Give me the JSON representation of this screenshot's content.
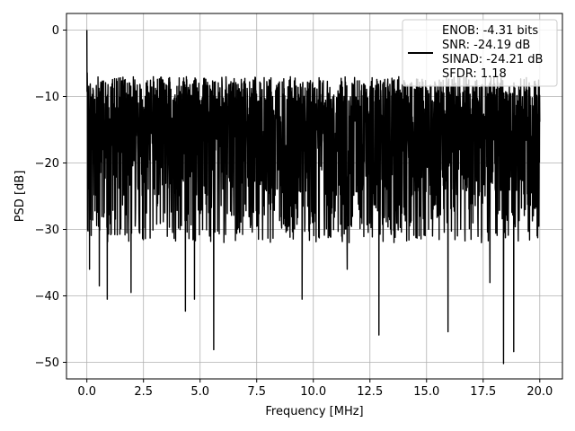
{
  "chart_data": {
    "type": "line",
    "title": "",
    "xlabel": "Frequency [MHz]",
    "ylabel": "PSD [dB]",
    "xlim": [
      -0.9,
      21.0
    ],
    "ylim": [
      -52.5,
      2.5
    ],
    "xticks": [
      0.0,
      2.5,
      5.0,
      7.5,
      10.0,
      12.5,
      15.0,
      17.5,
      20.0
    ],
    "xtick_labels": [
      "0.0",
      "2.5",
      "5.0",
      "7.5",
      "10.0",
      "12.5",
      "15.0",
      "17.5",
      "20.0"
    ],
    "yticks": [
      0,
      -10,
      -20,
      -30,
      -40,
      -50
    ],
    "ytick_labels": [
      "0",
      "−10",
      "−20",
      "−30",
      "−40",
      "−50"
    ],
    "grid": true,
    "legend_placement": "top-right",
    "series": [
      {
        "name": "",
        "color": "#000000",
        "description_points": {
          "x_range": [
            0.0,
            20.0
          ],
          "noise_floor_upper_db": -10,
          "noise_floor_lower_db": -25,
          "peak_x": 0.0,
          "peak_db": 0.0
        },
        "notable_dips": [
          {
            "x": 0.12,
            "y": -36
          },
          {
            "x": 0.55,
            "y": -38.5
          },
          {
            "x": 0.9,
            "y": -40.5
          },
          {
            "x": 1.95,
            "y": -39.5
          },
          {
            "x": 4.35,
            "y": -42.3
          },
          {
            "x": 4.75,
            "y": -40.5
          },
          {
            "x": 5.6,
            "y": -48.1
          },
          {
            "x": 9.5,
            "y": -40.5
          },
          {
            "x": 11.5,
            "y": -36
          },
          {
            "x": 12.9,
            "y": -45.9
          },
          {
            "x": 15.95,
            "y": -45.4
          },
          {
            "x": 17.8,
            "y": -38
          },
          {
            "x": 18.4,
            "y": -50.2
          },
          {
            "x": 18.85,
            "y": -48.4
          }
        ]
      }
    ],
    "legend": {
      "lines": [
        "ENOB: -4.31 bits",
        "SNR: -24.19 dB",
        "SINAD: -24.21 dB",
        "SFDR: 1.18"
      ]
    }
  }
}
